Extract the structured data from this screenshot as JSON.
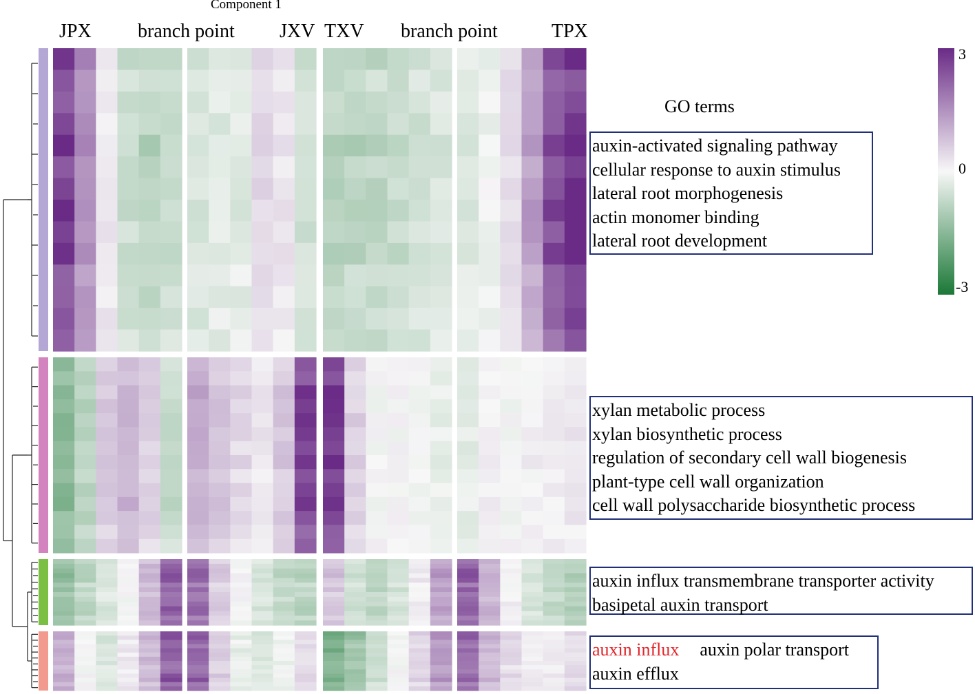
{
  "header": {
    "partial_axis_label": "Component 1"
  },
  "columns": {
    "jpx": "JPX",
    "branch_left": "branch point",
    "jxv": "JXV",
    "txv": "TXV",
    "branch_right": "branch point",
    "tpx": "TPX"
  },
  "colors": {
    "high": "#6a2b86",
    "mid": "#f7f7f7",
    "low": "#1b7837",
    "cluster_colors": [
      "#b4a7d6",
      "#d384be",
      "#7bc043",
      "#f29a8d"
    ],
    "go_box_border": "#1f2f7a",
    "highlight_text": "#e0262b"
  },
  "chart_data": {
    "type": "heatmap",
    "title": "",
    "scale": {
      "min": -3,
      "mid": 0,
      "max": 3,
      "tick_labels": [
        "3",
        "0",
        "-3"
      ]
    },
    "panels": [
      "JPX → branch point → JXV",
      "TXV → branch point → TPX"
    ],
    "row_weights": [
      440,
      284,
      96,
      86
    ],
    "clusters": [
      {
        "id": 1,
        "profile": [
          2.6,
          1.5,
          0.2,
          -0.6,
          -0.8,
          -0.6,
          -0.4,
          -0.3,
          -0.3,
          0.4,
          0.2,
          -0.5,
          -0.8,
          -0.8,
          -0.7,
          -0.6,
          -0.5,
          -0.4,
          -0.3,
          -0.1,
          0.4,
          1.3,
          2.4,
          2.9
        ]
      },
      {
        "id": 2,
        "profile": [
          -1.4,
          -0.8,
          0.6,
          0.9,
          0.5,
          -0.6,
          1.0,
          0.7,
          0.4,
          0.2,
          0.6,
          2.5,
          2.6,
          0.5,
          0.0,
          0.0,
          0.0,
          -0.2,
          -0.2,
          0.1,
          0.0,
          0.1,
          0.1,
          0.2
        ]
      },
      {
        "id": 3,
        "profile": [
          -1.3,
          -0.8,
          -0.4,
          0.0,
          0.9,
          2.1,
          2.0,
          0.6,
          0.0,
          -0.4,
          -0.7,
          -0.8,
          0.7,
          -0.6,
          -0.8,
          -0.5,
          0.2,
          1.2,
          2.2,
          1.0,
          0.1,
          -0.4,
          -0.7,
          -0.9
        ]
      },
      {
        "id": 4,
        "profile": [
          1.1,
          0.0,
          -0.4,
          0.2,
          0.9,
          2.2,
          2.1,
          0.6,
          -0.2,
          -0.4,
          -0.1,
          0.4,
          -1.6,
          -1.2,
          -0.6,
          0.0,
          0.5,
          1.4,
          2.0,
          0.9,
          0.4,
          0.2,
          0.2,
          0.4
        ]
      }
    ]
  },
  "go": {
    "title": "GO terms",
    "box1": [
      "auxin-activated signaling pathway",
      "cellular response to auxin stimulus",
      "lateral root morphogenesis",
      "actin monomer binding",
      "lateral root development"
    ],
    "box2": [
      "xylan metabolic process",
      "xylan biosynthetic process",
      "regulation of secondary cell wall biogenesis",
      "plant-type cell wall organization",
      "cell wall polysaccharide biosynthetic process"
    ],
    "box3": [
      "auxin influx transmembrane transporter activity",
      "basipetal auxin transport"
    ],
    "box4": {
      "red": "auxin influx",
      "right": "auxin polar transport",
      "second": "auxin efflux"
    }
  }
}
